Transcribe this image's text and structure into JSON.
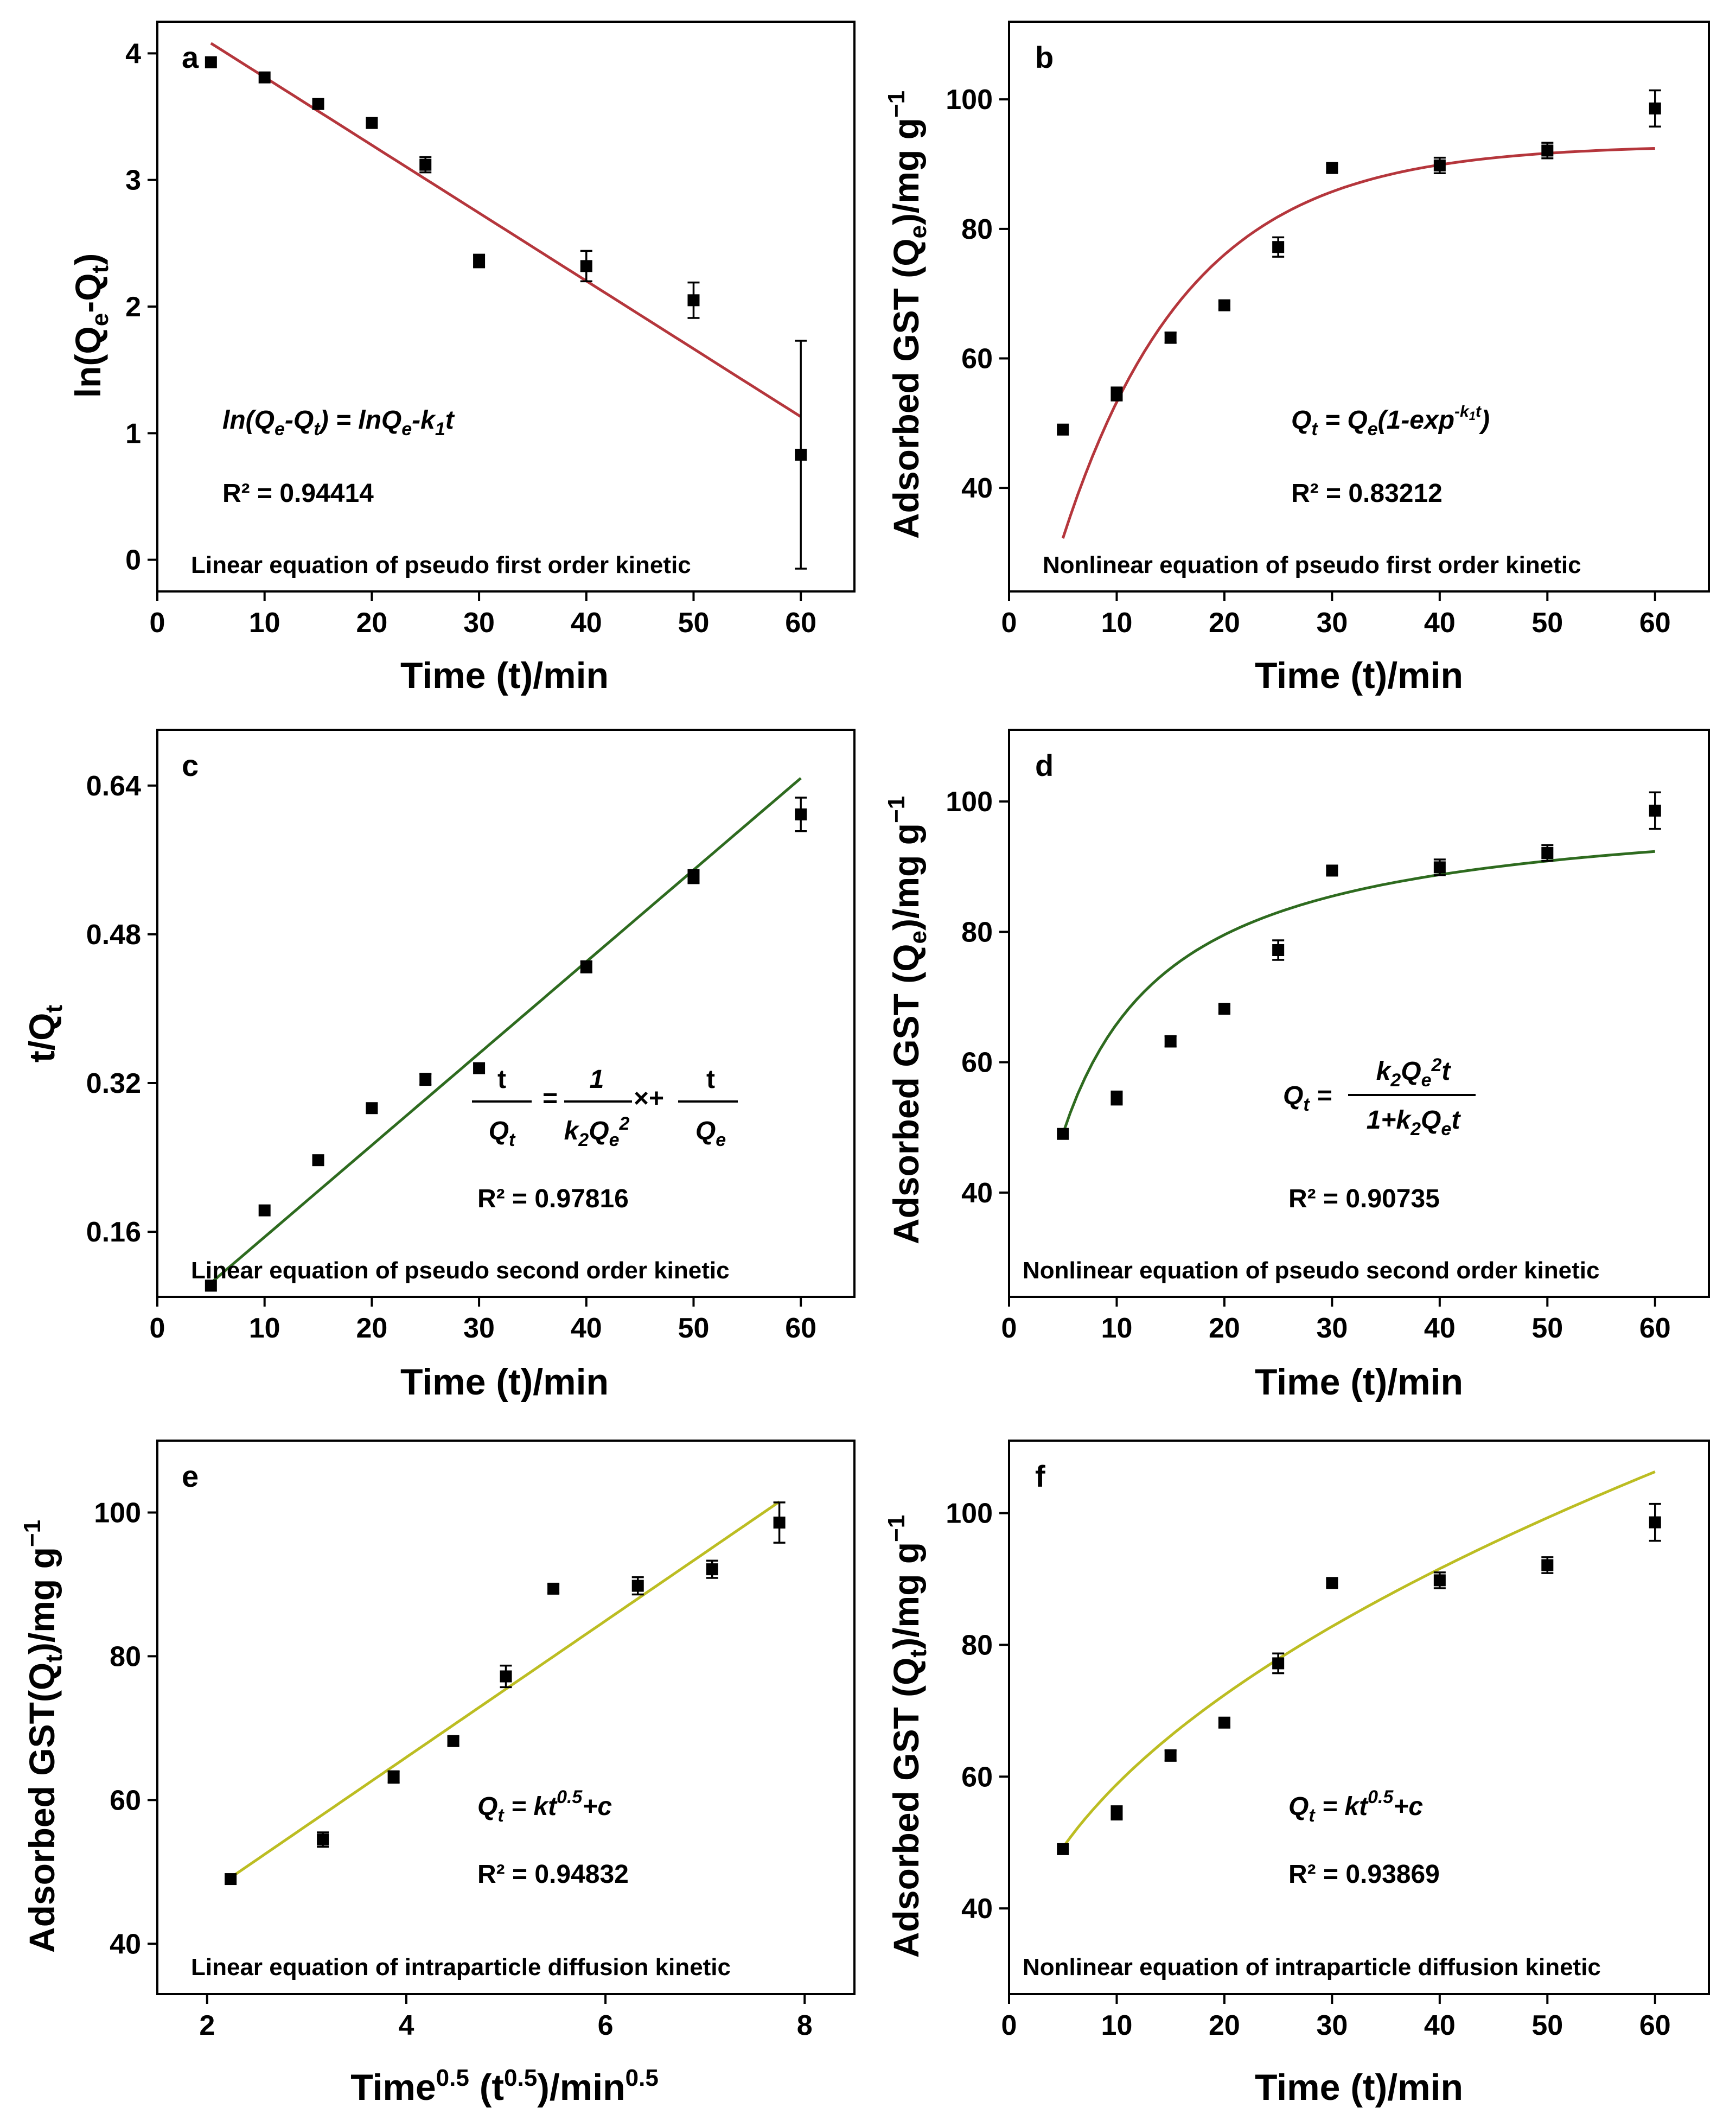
{
  "figure": {
    "panels": [
      {
        "label": "a",
        "footer": "Linear equation of pseudo first order kinetic",
        "xlabel": "Time (t)/min",
        "ylabel_main": "ln(Q",
        "r2": "R² = 0.94414"
      },
      {
        "label": "b",
        "footer": "Nonlinear equation of pseudo first order kinetic",
        "xlabel": "Time (t)/min",
        "ylabel_main": "Adsorbed GST (Q",
        "r2": "R² = 0.83212"
      },
      {
        "label": "c",
        "footer": "Linear equation of pseudo second order kinetic",
        "xlabel": "Time (t)/min",
        "ylabel_main": "t/Q",
        "r2": "R² = 0.97816"
      },
      {
        "label": "d",
        "footer": "Nonlinear equation of pseudo second order kinetic",
        "xlabel": "Time (t)/min",
        "ylabel_main": "Adsorbed GST (Q",
        "r2": "R² = 0.90735"
      },
      {
        "label": "e",
        "footer": "Linear equation of intraparticle diffusion kinetic",
        "xlabel": "Time⁰·⁵ (t⁰·⁵)/min⁰·⁵",
        "ylabel_main": "Adsorbed GST(Q",
        "r2": "R² = 0.94832"
      },
      {
        "label": "f",
        "footer": "Nonlinear equation of intraparticle diffusion kinetic",
        "xlabel": "Time (t)/min",
        "ylabel_main": "Adsorbed GST (Q",
        "r2": "R² = 0.93869"
      }
    ]
  },
  "chart_data": [
    {
      "type": "scatter",
      "panel": "a",
      "title": "Linear equation of pseudo first order kinetic",
      "xlabel": "Time (t)/min",
      "ylabel": "ln(Qe-Qt)",
      "xlim": [
        0,
        65
      ],
      "ylim": [
        -0.25,
        4.25
      ],
      "xticks": [
        0,
        10,
        20,
        30,
        40,
        50,
        60
      ],
      "yticks": [
        0,
        1,
        2,
        3,
        4
      ],
      "x": [
        5,
        10,
        15,
        20,
        25,
        30,
        40,
        50,
        60
      ],
      "y": [
        3.93,
        3.81,
        3.6,
        3.45,
        3.12,
        2.36,
        2.32,
        2.05,
        0.83
      ],
      "yerr": [
        0.02,
        0.02,
        0.03,
        0.02,
        0.06,
        0.05,
        0.12,
        0.14,
        0.9
      ],
      "fit": {
        "type": "linear",
        "x0": 5,
        "x1": 60,
        "y0": 4.08,
        "y1": 1.13,
        "color": "#b5363c"
      },
      "equation": "ln(Qe-Qt) = lnQe-k1t",
      "r2": "R² = 0.94414"
    },
    {
      "type": "scatter",
      "panel": "b",
      "title": "Nonlinear equation of pseudo first order kinetic",
      "xlabel": "Time (t)/min",
      "ylabel": "Adsorbed GST (Qe)/mg g⁻¹",
      "xlim": [
        0,
        65
      ],
      "ylim": [
        24,
        112
      ],
      "xticks": [
        0,
        10,
        20,
        30,
        40,
        50,
        60
      ],
      "yticks": [
        40,
        60,
        80,
        100
      ],
      "x": [
        5,
        10,
        15,
        20,
        25,
        30,
        40,
        50,
        60
      ],
      "y": [
        49,
        54.5,
        63.2,
        68.2,
        77.2,
        89.4,
        89.8,
        92.1,
        98.6
      ],
      "yerr": [
        0.4,
        1.0,
        0.8,
        0.6,
        1.5,
        0.6,
        1.2,
        1.2,
        2.8
      ],
      "fit": {
        "type": "pfo",
        "qe": 93,
        "k": 0.085,
        "x0": 5,
        "x1": 60,
        "color": "#b5363c"
      },
      "equation": "Qt = Qe(1-exp^(-k1t))",
      "r2": "R² = 0.83212"
    },
    {
      "type": "scatter",
      "panel": "c",
      "title": "Linear equation of pseudo second order kinetic",
      "xlabel": "Time (t)/min",
      "ylabel": "t/Qt",
      "xlim": [
        0,
        65
      ],
      "ylim": [
        0.09,
        0.7
      ],
      "xticks": [
        0,
        10,
        20,
        30,
        40,
        50,
        60
      ],
      "yticks": [
        0.16,
        0.32,
        0.48,
        0.64
      ],
      "yticklabels": [
        "0.16",
        "0.32",
        "0.48",
        "0.64"
      ],
      "x": [
        5,
        10,
        15,
        20,
        25,
        30,
        40,
        50,
        60
      ],
      "y": [
        0.102,
        0.183,
        0.237,
        0.293,
        0.324,
        0.336,
        0.445,
        0.542,
        0.609
      ],
      "yerr": [
        0.002,
        0.003,
        0.003,
        0.003,
        0.006,
        0.003,
        0.006,
        0.007,
        0.018
      ],
      "fit": {
        "type": "linear",
        "x0": 5,
        "x1": 60,
        "y0": 0.105,
        "y1": 0.648,
        "color": "#2e6b1f"
      },
      "equation": "t/Qt = 1/(k2Qe²) × + t/Qe",
      "r2": "R² = 0.97816"
    },
    {
      "type": "scatter",
      "panel": "d",
      "title": "Nonlinear equation of pseudo second order kinetic",
      "xlabel": "Time (t)/min",
      "ylabel": "Adsorbed GST (Qe)/mg g⁻¹",
      "xlim": [
        0,
        65
      ],
      "ylim": [
        24,
        111
      ],
      "xticks": [
        0,
        10,
        20,
        30,
        40,
        50,
        60
      ],
      "yticks": [
        40,
        60,
        80,
        100
      ],
      "x": [
        5,
        10,
        15,
        20,
        25,
        30,
        40,
        50,
        60
      ],
      "y": [
        49,
        54.5,
        63.2,
        68.2,
        77.2,
        89.4,
        89.9,
        92.1,
        98.6
      ],
      "yerr": [
        0.4,
        1.0,
        0.8,
        0.6,
        1.5,
        0.6,
        1.2,
        1.2,
        2.8
      ],
      "fit": {
        "type": "pso",
        "qe": 100.4,
        "k": 0.0019,
        "x0": 5,
        "x1": 60,
        "color": "#2e6b1f"
      },
      "equation": "Qt = k2Qe²t / (1+k2Qet)",
      "r2": "R² = 0.90735"
    },
    {
      "type": "scatter",
      "panel": "e",
      "title": "Linear equation of intraparticle diffusion kinetic",
      "xlabel": "Time^0.5 (t^0.5)/min^0.5",
      "ylabel": "Adsorbed GST(Qt)/mg g⁻¹",
      "xlim": [
        1.5,
        8.5
      ],
      "ylim": [
        33,
        110
      ],
      "xticks": [
        2,
        4,
        6,
        8
      ],
      "yticks": [
        40,
        60,
        80,
        100
      ],
      "x": [
        2.236,
        3.162,
        3.873,
        4.472,
        5.0,
        5.477,
        6.325,
        7.071,
        7.746
      ],
      "y": [
        49,
        54.5,
        63.2,
        68.2,
        77.2,
        89.4,
        89.8,
        92.1,
        98.6
      ],
      "yerr": [
        0.4,
        1.0,
        0.8,
        0.6,
        1.5,
        0.6,
        1.2,
        1.2,
        2.8
      ],
      "fit": {
        "type": "linear",
        "x0": 2.236,
        "x1": 7.746,
        "y0": 49.2,
        "y1": 101.5,
        "color": "#bcbd22"
      },
      "equation": "Qt = kt^0.5+c",
      "r2": "R² = 0.94832"
    },
    {
      "type": "scatter",
      "panel": "f",
      "title": "Nonlinear equation of intraparticle diffusion kinetic",
      "xlabel": "Time (t)/min",
      "ylabel": "Adsorbed GST (Qt)/mg g⁻¹",
      "xlim": [
        0,
        65
      ],
      "ylim": [
        27,
        111
      ],
      "xticks": [
        0,
        10,
        20,
        30,
        40,
        50,
        60
      ],
      "yticks": [
        40,
        60,
        80,
        100
      ],
      "x": [
        5,
        10,
        15,
        20,
        25,
        30,
        40,
        50,
        60
      ],
      "y": [
        49,
        54.5,
        63.2,
        68.2,
        77.2,
        89.4,
        89.8,
        92.1,
        98.6
      ],
      "yerr": [
        0.4,
        1.0,
        0.8,
        0.6,
        1.5,
        0.6,
        1.2,
        1.2,
        2.8
      ],
      "fit": {
        "type": "sqrt",
        "k": 10.35,
        "c": 26.1,
        "x0": 5,
        "x1": 60,
        "color": "#bcbd22"
      },
      "equation": "Qt = kt^0.5+c",
      "r2": "R² = 0.93869"
    }
  ]
}
